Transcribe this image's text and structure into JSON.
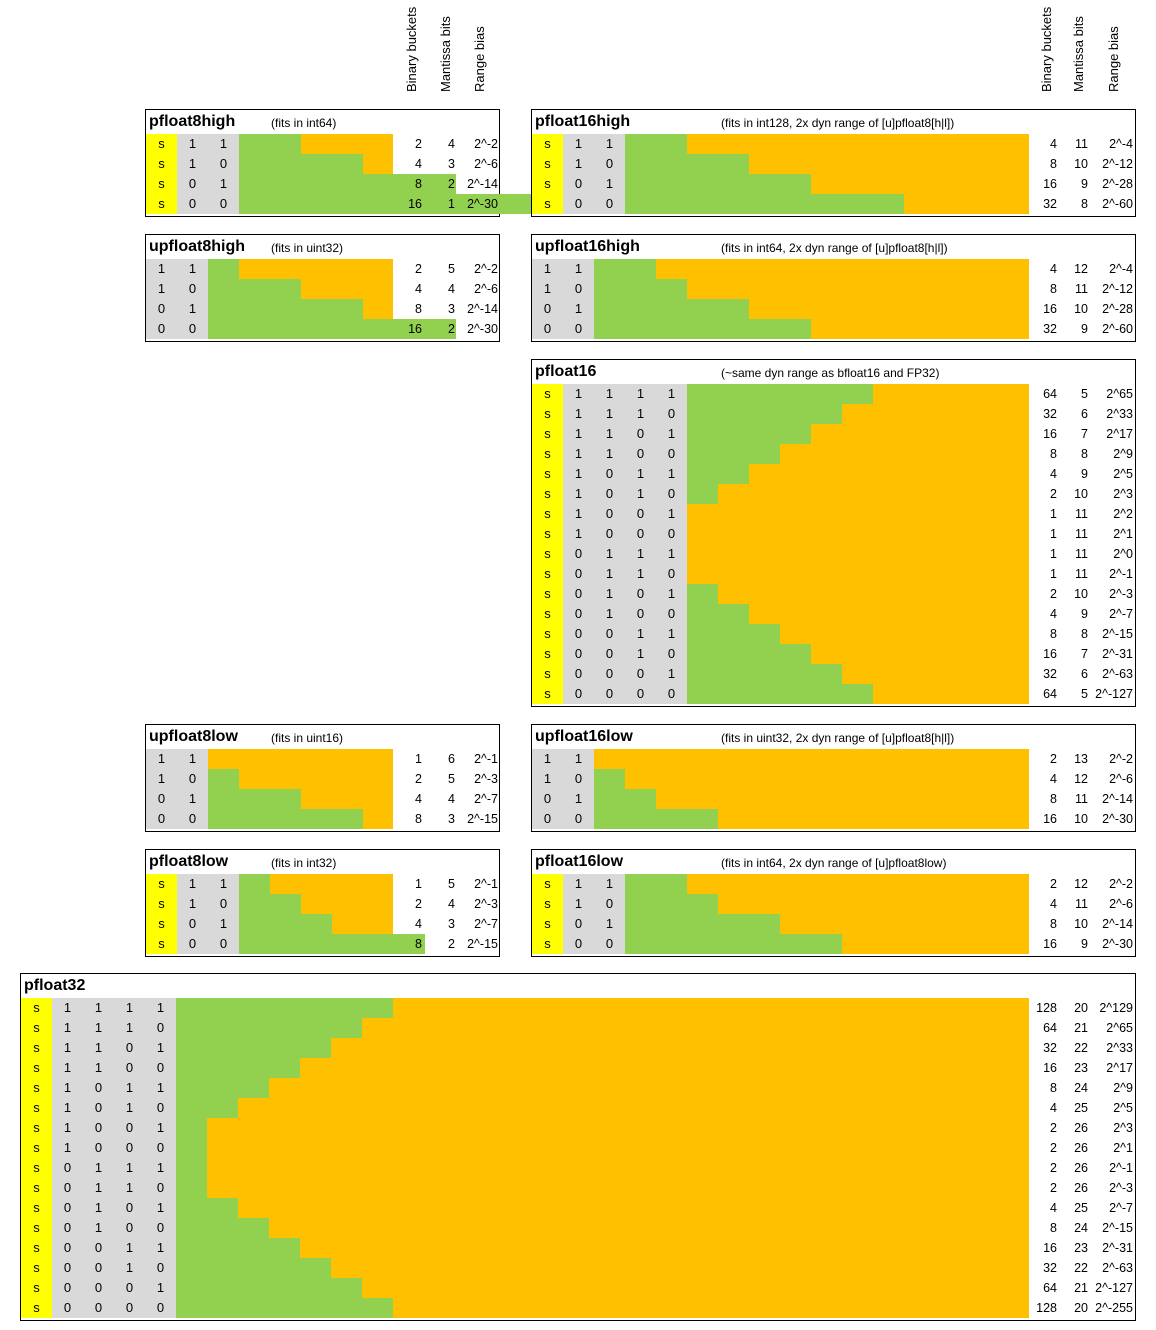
{
  "headers": [
    "Binary buckets",
    "Mantissa bits",
    "Range bias"
  ],
  "panels": [
    {
      "id": "pfloat8high",
      "title": "pfloat8high",
      "note": "(fits in int64)",
      "rows": [
        {
          "s": "s",
          "bits": [
            "1",
            "1"
          ],
          "buckets": "2",
          "mantissa": "4",
          "bias": "2^-2"
        },
        {
          "s": "s",
          "bits": [
            "1",
            "0"
          ],
          "buckets": "4",
          "mantissa": "3",
          "bias": "2^-6"
        },
        {
          "s": "s",
          "bits": [
            "0",
            "1"
          ],
          "buckets": "8",
          "mantissa": "2",
          "bias": "2^-14"
        },
        {
          "s": "s",
          "bits": [
            "0",
            "0"
          ],
          "buckets": "16",
          "mantissa": "1",
          "bias": "2^-30"
        }
      ]
    },
    {
      "id": "upfloat8high",
      "title": "upfloat8high",
      "note": "(fits in uint32)",
      "rows": [
        {
          "bits": [
            "1",
            "1"
          ],
          "buckets": "2",
          "mantissa": "5",
          "bias": "2^-2"
        },
        {
          "bits": [
            "1",
            "0"
          ],
          "buckets": "4",
          "mantissa": "4",
          "bias": "2^-6"
        },
        {
          "bits": [
            "0",
            "1"
          ],
          "buckets": "8",
          "mantissa": "3",
          "bias": "2^-14"
        },
        {
          "bits": [
            "0",
            "0"
          ],
          "buckets": "16",
          "mantissa": "2",
          "bias": "2^-30"
        }
      ]
    },
    {
      "id": "upfloat8low",
      "title": "upfloat8low",
      "note": "(fits in uint16)",
      "rows": [
        {
          "bits": [
            "1",
            "1"
          ],
          "buckets": "1",
          "mantissa": "6",
          "bias": "2^-1"
        },
        {
          "bits": [
            "1",
            "0"
          ],
          "buckets": "2",
          "mantissa": "5",
          "bias": "2^-3"
        },
        {
          "bits": [
            "0",
            "1"
          ],
          "buckets": "4",
          "mantissa": "4",
          "bias": "2^-7"
        },
        {
          "bits": [
            "0",
            "0"
          ],
          "buckets": "8",
          "mantissa": "3",
          "bias": "2^-15"
        }
      ]
    },
    {
      "id": "pfloat8low",
      "title": "pfloat8low",
      "note": "(fits in int32)",
      "rows": [
        {
          "s": "s",
          "bits": [
            "1",
            "1"
          ],
          "buckets": "1",
          "mantissa": "5",
          "bias": "2^-1"
        },
        {
          "s": "s",
          "bits": [
            "1",
            "0"
          ],
          "buckets": "2",
          "mantissa": "4",
          "bias": "2^-3"
        },
        {
          "s": "s",
          "bits": [
            "0",
            "1"
          ],
          "buckets": "4",
          "mantissa": "3",
          "bias": "2^-7"
        },
        {
          "s": "s",
          "bits": [
            "0",
            "0"
          ],
          "buckets": "8",
          "mantissa": "2",
          "bias": "2^-15"
        }
      ]
    },
    {
      "id": "pfloat16high",
      "title": "pfloat16high",
      "note": "(fits in int128, 2x dyn range of [u]pfloat8[h|l])",
      "rows": [
        {
          "s": "s",
          "bits": [
            "1",
            "1"
          ],
          "buckets": "4",
          "mantissa": "11",
          "bias": "2^-4"
        },
        {
          "s": "s",
          "bits": [
            "1",
            "0"
          ],
          "buckets": "8",
          "mantissa": "10",
          "bias": "2^-12"
        },
        {
          "s": "s",
          "bits": [
            "0",
            "1"
          ],
          "buckets": "16",
          "mantissa": "9",
          "bias": "2^-28"
        },
        {
          "s": "s",
          "bits": [
            "0",
            "0"
          ],
          "buckets": "32",
          "mantissa": "8",
          "bias": "2^-60"
        }
      ]
    },
    {
      "id": "upfloat16high",
      "title": "upfloat16high",
      "note": "(fits in int64, 2x dyn range of [u]pfloat8[h|l])",
      "rows": [
        {
          "bits": [
            "1",
            "1"
          ],
          "buckets": "4",
          "mantissa": "12",
          "bias": "2^-4"
        },
        {
          "bits": [
            "1",
            "0"
          ],
          "buckets": "8",
          "mantissa": "11",
          "bias": "2^-12"
        },
        {
          "bits": [
            "0",
            "1"
          ],
          "buckets": "16",
          "mantissa": "10",
          "bias": "2^-28"
        },
        {
          "bits": [
            "0",
            "0"
          ],
          "buckets": "32",
          "mantissa": "9",
          "bias": "2^-60"
        }
      ]
    },
    {
      "id": "pfloat16",
      "title": "pfloat16",
      "note": "(~same dyn range as bfloat16 and FP32)",
      "rows": [
        {
          "s": "s",
          "bits": [
            "1",
            "1",
            "1",
            "1"
          ],
          "buckets": "64",
          "mantissa": "5",
          "bias": "2^65"
        },
        {
          "s": "s",
          "bits": [
            "1",
            "1",
            "1",
            "0"
          ],
          "buckets": "32",
          "mantissa": "6",
          "bias": "2^33"
        },
        {
          "s": "s",
          "bits": [
            "1",
            "1",
            "0",
            "1"
          ],
          "buckets": "16",
          "mantissa": "7",
          "bias": "2^17"
        },
        {
          "s": "s",
          "bits": [
            "1",
            "1",
            "0",
            "0"
          ],
          "buckets": "8",
          "mantissa": "8",
          "bias": "2^9"
        },
        {
          "s": "s",
          "bits": [
            "1",
            "0",
            "1",
            "1"
          ],
          "buckets": "4",
          "mantissa": "9",
          "bias": "2^5"
        },
        {
          "s": "s",
          "bits": [
            "1",
            "0",
            "1",
            "0"
          ],
          "buckets": "2",
          "mantissa": "10",
          "bias": "2^3"
        },
        {
          "s": "s",
          "bits": [
            "1",
            "0",
            "0",
            "1"
          ],
          "buckets": "1",
          "mantissa": "11",
          "bias": "2^2"
        },
        {
          "s": "s",
          "bits": [
            "1",
            "0",
            "0",
            "0"
          ],
          "buckets": "1",
          "mantissa": "11",
          "bias": "2^1"
        },
        {
          "s": "s",
          "bits": [
            "0",
            "1",
            "1",
            "1"
          ],
          "buckets": "1",
          "mantissa": "11",
          "bias": "2^0"
        },
        {
          "s": "s",
          "bits": [
            "0",
            "1",
            "1",
            "0"
          ],
          "buckets": "1",
          "mantissa": "11",
          "bias": "2^-1"
        },
        {
          "s": "s",
          "bits": [
            "0",
            "1",
            "0",
            "1"
          ],
          "buckets": "2",
          "mantissa": "10",
          "bias": "2^-3"
        },
        {
          "s": "s",
          "bits": [
            "0",
            "1",
            "0",
            "0"
          ],
          "buckets": "4",
          "mantissa": "9",
          "bias": "2^-7"
        },
        {
          "s": "s",
          "bits": [
            "0",
            "0",
            "1",
            "1"
          ],
          "buckets": "8",
          "mantissa": "8",
          "bias": "2^-15"
        },
        {
          "s": "s",
          "bits": [
            "0",
            "0",
            "1",
            "0"
          ],
          "buckets": "16",
          "mantissa": "7",
          "bias": "2^-31"
        },
        {
          "s": "s",
          "bits": [
            "0",
            "0",
            "0",
            "1"
          ],
          "buckets": "32",
          "mantissa": "6",
          "bias": "2^-63"
        },
        {
          "s": "s",
          "bits": [
            "0",
            "0",
            "0",
            "0"
          ],
          "buckets": "64",
          "mantissa": "5",
          "bias": "2^-127"
        }
      ]
    },
    {
      "id": "upfloat16low",
      "title": "upfloat16low",
      "note": "(fits in uint32, 2x dyn range of [u]pfloat8[h|l])",
      "rows": [
        {
          "bits": [
            "1",
            "1"
          ],
          "buckets": "2",
          "mantissa": "13",
          "bias": "2^-2"
        },
        {
          "bits": [
            "1",
            "0"
          ],
          "buckets": "4",
          "mantissa": "12",
          "bias": "2^-6"
        },
        {
          "bits": [
            "0",
            "1"
          ],
          "buckets": "8",
          "mantissa": "11",
          "bias": "2^-14"
        },
        {
          "bits": [
            "0",
            "0"
          ],
          "buckets": "16",
          "mantissa": "10",
          "bias": "2^-30"
        }
      ]
    },
    {
      "id": "pfloat16low",
      "title": "pfloat16low",
      "note": "(fits in int64, 2x dyn range of [u]pfloat8low)",
      "rows": [
        {
          "s": "s",
          "bits": [
            "1",
            "1"
          ],
          "buckets": "2",
          "mantissa": "12",
          "bias": "2^-2"
        },
        {
          "s": "s",
          "bits": [
            "1",
            "0"
          ],
          "buckets": "4",
          "mantissa": "11",
          "bias": "2^-6"
        },
        {
          "s": "s",
          "bits": [
            "0",
            "1"
          ],
          "buckets": "8",
          "mantissa": "10",
          "bias": "2^-14"
        },
        {
          "s": "s",
          "bits": [
            "0",
            "0"
          ],
          "buckets": "16",
          "mantissa": "9",
          "bias": "2^-30"
        }
      ]
    },
    {
      "id": "pfloat32",
      "title": "pfloat32",
      "note": "",
      "rows": [
        {
          "s": "s",
          "bits": [
            "1",
            "1",
            "1",
            "1"
          ],
          "buckets": "128",
          "mantissa": "20",
          "bias": "2^129"
        },
        {
          "s": "s",
          "bits": [
            "1",
            "1",
            "1",
            "0"
          ],
          "buckets": "64",
          "mantissa": "21",
          "bias": "2^65"
        },
        {
          "s": "s",
          "bits": [
            "1",
            "1",
            "0",
            "1"
          ],
          "buckets": "32",
          "mantissa": "22",
          "bias": "2^33"
        },
        {
          "s": "s",
          "bits": [
            "1",
            "1",
            "0",
            "0"
          ],
          "buckets": "16",
          "mantissa": "23",
          "bias": "2^17"
        },
        {
          "s": "s",
          "bits": [
            "1",
            "0",
            "1",
            "1"
          ],
          "buckets": "8",
          "mantissa": "24",
          "bias": "2^9"
        },
        {
          "s": "s",
          "bits": [
            "1",
            "0",
            "1",
            "0"
          ],
          "buckets": "4",
          "mantissa": "25",
          "bias": "2^5"
        },
        {
          "s": "s",
          "bits": [
            "1",
            "0",
            "0",
            "1"
          ],
          "buckets": "2",
          "mantissa": "26",
          "bias": "2^3"
        },
        {
          "s": "s",
          "bits": [
            "1",
            "0",
            "0",
            "0"
          ],
          "buckets": "2",
          "mantissa": "26",
          "bias": "2^1"
        },
        {
          "s": "s",
          "bits": [
            "0",
            "1",
            "1",
            "1"
          ],
          "buckets": "2",
          "mantissa": "26",
          "bias": "2^-1"
        },
        {
          "s": "s",
          "bits": [
            "0",
            "1",
            "1",
            "0"
          ],
          "buckets": "2",
          "mantissa": "26",
          "bias": "2^-3"
        },
        {
          "s": "s",
          "bits": [
            "0",
            "1",
            "0",
            "1"
          ],
          "buckets": "4",
          "mantissa": "25",
          "bias": "2^-7"
        },
        {
          "s": "s",
          "bits": [
            "0",
            "1",
            "0",
            "0"
          ],
          "buckets": "8",
          "mantissa": "24",
          "bias": "2^-15"
        },
        {
          "s": "s",
          "bits": [
            "0",
            "0",
            "1",
            "1"
          ],
          "buckets": "16",
          "mantissa": "23",
          "bias": "2^-31"
        },
        {
          "s": "s",
          "bits": [
            "0",
            "0",
            "1",
            "0"
          ],
          "buckets": "32",
          "mantissa": "22",
          "bias": "2^-63"
        },
        {
          "s": "s",
          "bits": [
            "0",
            "0",
            "0",
            "1"
          ],
          "buckets": "64",
          "mantissa": "21",
          "bias": "2^-127"
        },
        {
          "s": "s",
          "bits": [
            "0",
            "0",
            "0",
            "0"
          ],
          "buckets": "128",
          "mantissa": "20",
          "bias": "2^-255"
        }
      ]
    }
  ]
}
